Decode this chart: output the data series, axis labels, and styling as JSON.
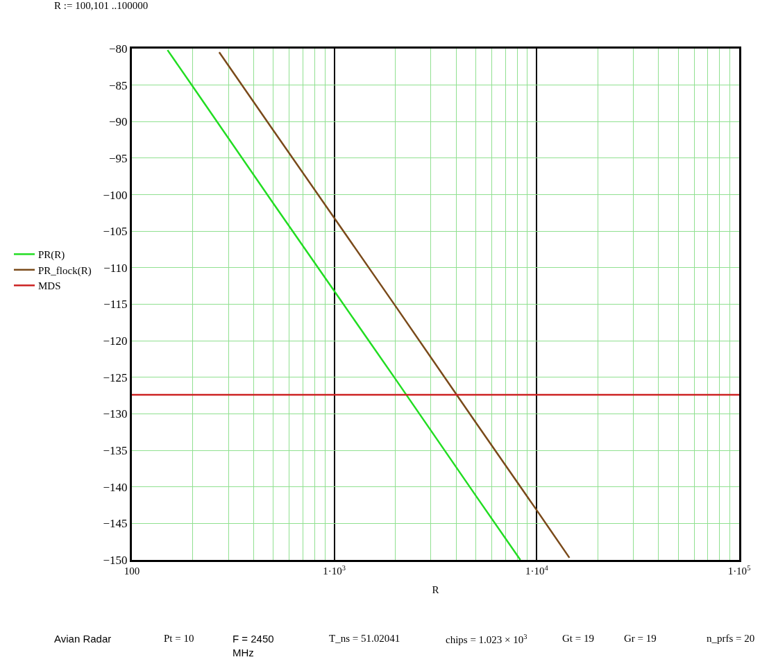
{
  "chart_data": {
    "type": "line",
    "xlabel": "R",
    "x": [
      150,
      200,
      500,
      1000,
      2000,
      5000,
      8300
    ],
    "series": [
      {
        "name": "PR(R)",
        "color": "#22dd22",
        "values": [
          -80.2,
          -85.2,
          -101.2,
          -113.2,
          -125.2,
          -141.2,
          -150.0
        ]
      },
      {
        "name": "PR_flock(R)",
        "color": "#7a4a1a",
        "x": [
          270,
          500,
          1000,
          2000,
          5000,
          10000,
          14500
        ],
        "values": [
          -80.5,
          -91.2,
          -103.2,
          -115.2,
          -131.2,
          -143.2,
          -149.7
        ]
      },
      {
        "name": "MDS",
        "color": "#cc2222",
        "x": [
          100,
          100000
        ],
        "values": [
          -127.4,
          -127.4
        ]
      }
    ],
    "log": "x",
    "xlim": [
      100,
      100000
    ],
    "xticks": [
      100,
      {
        "value": 1000,
        "label": "1·10$^{3}$"
      },
      {
        "value": 10000,
        "label": "1·10$^{4}$"
      },
      {
        "value": 100000,
        "label": "1·10$^{5}$"
      }
    ],
    "ylim": [
      -150,
      -80
    ],
    "yticks": [
      {
        "value": -80,
        "label": "−80"
      },
      {
        "value": -85,
        "label": "−85"
      },
      {
        "value": -90,
        "label": "−90"
      },
      {
        "value": -95,
        "label": "−95"
      },
      {
        "value": -100,
        "label": "−100"
      },
      {
        "value": -105,
        "label": "−105"
      },
      {
        "value": -110,
        "label": "−110"
      },
      {
        "value": -115,
        "label": "−115"
      },
      {
        "value": -120,
        "label": "−120"
      },
      {
        "value": -125,
        "label": "−125"
      },
      {
        "value": -130,
        "label": "−130"
      },
      {
        "value": -135,
        "label": "−135"
      },
      {
        "value": -140,
        "label": "−140"
      },
      {
        "value": -145,
        "label": "−145"
      },
      {
        "value": -150,
        "label": "−150"
      }
    ],
    "grid": true,
    "legend": "left",
    "line_style": "solid",
    "annotations": [
      "R := 100,101 ..100000",
      "Avian Radar",
      "Pt = 10",
      "F = 2450\nMHz",
      "T_ns = 51.02041",
      "chips = 1.023 × 10$^{3}$",
      "Gt = 19",
      "Gr = 19",
      "n_prfs = 20"
    ]
  }
}
